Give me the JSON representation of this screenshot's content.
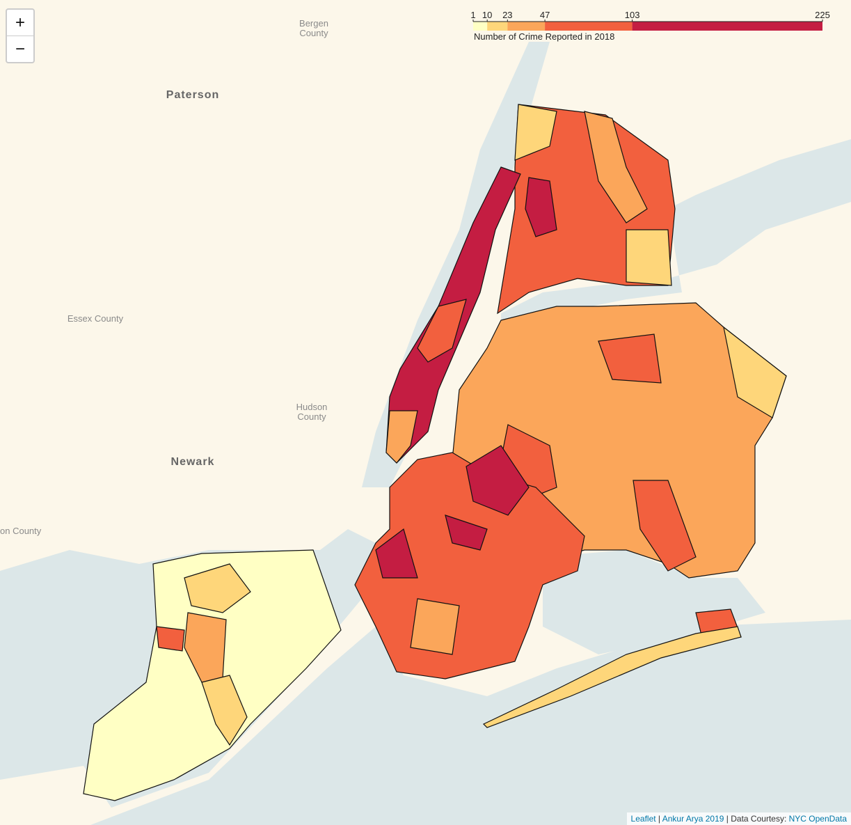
{
  "zoom": {
    "in": "+",
    "out": "−"
  },
  "legend": {
    "title": "Number of Crime Reported in 2018",
    "ticks": [
      1,
      10,
      23,
      47,
      103,
      225
    ],
    "colors": [
      "#ffffc4",
      "#fed67a",
      "#fba65a",
      "#f2603e",
      "#c41d42"
    ]
  },
  "places": {
    "bergen": [
      "Bergen",
      "County"
    ],
    "paterson": "Paterson",
    "essex": "Essex County",
    "hudson": [
      "Hudson",
      "County"
    ],
    "newark": "Newark",
    "union": "on County"
  },
  "attribution": {
    "leaflet": "Leaflet",
    "sep1": "|",
    "author": "Ankur Arya 2019",
    "sep2": "| Data Courtesy:",
    "source": "NYC OpenData"
  }
}
